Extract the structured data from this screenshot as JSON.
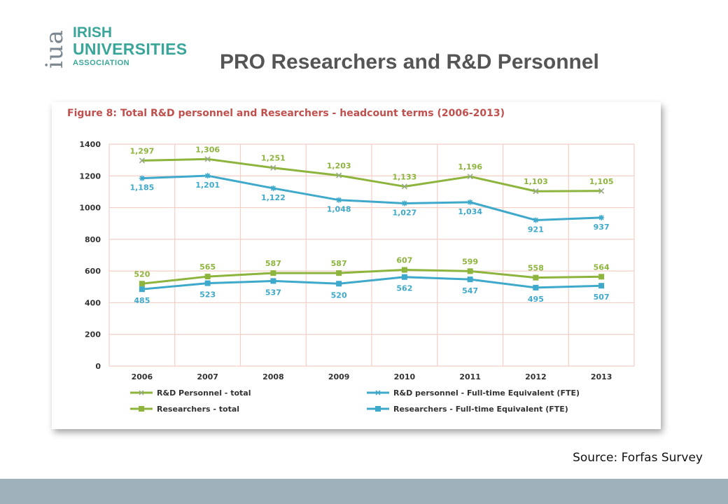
{
  "header": {
    "logo_mark": "iua",
    "logo_line1": "IRISH",
    "logo_line2": "UNIVERSITIES",
    "logo_line3": "ASSOCIATION",
    "title": "PRO Researchers and R&D Personnel"
  },
  "source": "Source: Forfas Survey",
  "colors": {
    "accent_teal": "#3aa699",
    "series_green": "#8db43d",
    "series_blue": "#3fa9cb",
    "figure_title": "#c0504d",
    "grid": "#f3cfc6",
    "footer": "#9fb1bb"
  },
  "chart_data": {
    "type": "line",
    "title": "Figure 8: Total R&D personnel and Researchers - headcount terms (2006-2013)",
    "xlabel": "",
    "ylabel": "",
    "ylim": [
      0,
      1400
    ],
    "yticks": [
      0,
      200,
      400,
      600,
      800,
      1000,
      1200,
      1400
    ],
    "categories": [
      "2006",
      "2007",
      "2008",
      "2009",
      "2010",
      "2011",
      "2012",
      "2013"
    ],
    "grid": true,
    "legend_position": "bottom",
    "series": [
      {
        "name": "R&D Personnel - total",
        "color": "#8db43d",
        "marker": "x",
        "values": [
          1297,
          1306,
          1251,
          1203,
          1133,
          1196,
          1103,
          1105
        ],
        "labels": [
          "1,297",
          "1,306",
          "1,251",
          "1,203",
          "1,133",
          "1,196",
          "1,103",
          "1,105"
        ]
      },
      {
        "name": "R&D personnel - Full-time Equivalent (FTE)",
        "color": "#3fa9cb",
        "marker": "star",
        "values": [
          1185,
          1201,
          1122,
          1048,
          1027,
          1034,
          921,
          937
        ],
        "labels": [
          "1,185",
          "1,201",
          "1,122",
          "1,048",
          "1,027",
          "1,034",
          "921",
          "937"
        ]
      },
      {
        "name": "Researchers - total",
        "color": "#8db43d",
        "marker": "square",
        "values": [
          520,
          565,
          587,
          587,
          607,
          599,
          558,
          564
        ],
        "labels": [
          "520",
          "565",
          "587",
          "587",
          "607",
          "599",
          "558",
          "564"
        ]
      },
      {
        "name": "Researchers - Full-time Equivalent (FTE)",
        "color": "#3fa9cb",
        "marker": "square",
        "values": [
          485,
          523,
          537,
          520,
          562,
          547,
          495,
          507
        ],
        "labels": [
          "485",
          "523",
          "537",
          "520",
          "562",
          "547",
          "495",
          "507"
        ]
      }
    ]
  }
}
